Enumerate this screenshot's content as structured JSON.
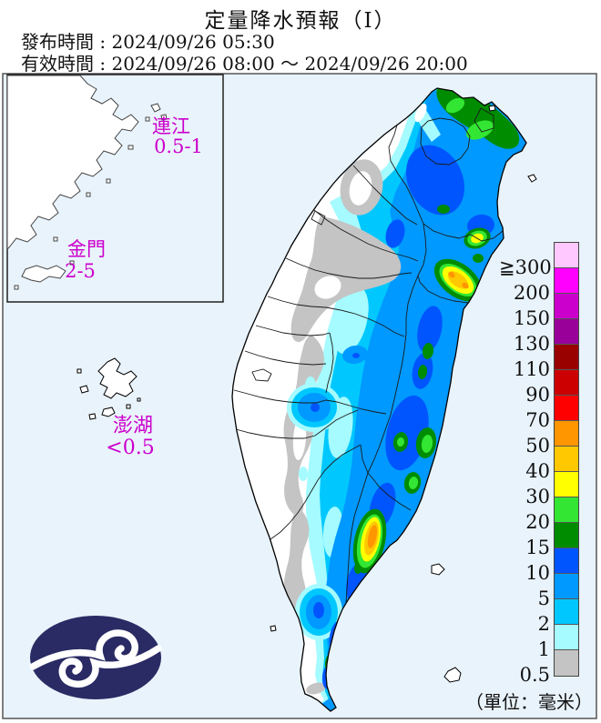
{
  "header": {
    "title": "定量降水預報（Ⅰ）",
    "issued_label": "發布時間 :",
    "issued_time": "2024/09/26 05:30",
    "valid_label": "有效時間 :",
    "valid_time": "2024/09/26 08:00 ～ 2024/09/26 20:00"
  },
  "map": {
    "sea_color": "#E9F3FB",
    "land_color": "#FFFFFF",
    "label_color": "#CC00CC",
    "labels": {
      "lienchiang_name": "連江",
      "lienchiang_value": "0.5-1",
      "kinmen_name": "金門",
      "kinmen_value": "2-5",
      "penghu_name": "澎湖",
      "penghu_value": "<0.5"
    }
  },
  "palette": {
    "p300": "#FFC8FF",
    "p200": "#FF00FF",
    "p150": "#CC00CC",
    "p130": "#990099",
    "p110": "#990000",
    "p90": "#CC0000",
    "p70": "#FF0000",
    "p50": "#FF9600",
    "p40": "#FFC800",
    "p30": "#FFFF00",
    "p20": "#33E633",
    "p15": "#008C00",
    "p10": "#0055FF",
    "p5": "#0099FF",
    "p2": "#00C8FF",
    "p1": "#A5FBFF",
    "p05": "#C4C4C4"
  },
  "legend": {
    "unit_label": "（單位：毫米）",
    "entries": [
      {
        "label": "≧300",
        "key": "p300"
      },
      {
        "label": "200",
        "key": "p200"
      },
      {
        "label": "150",
        "key": "p150"
      },
      {
        "label": "130",
        "key": "p130"
      },
      {
        "label": "110",
        "key": "p110"
      },
      {
        "label": "90",
        "key": "p90"
      },
      {
        "label": "70",
        "key": "p70"
      },
      {
        "label": "50",
        "key": "p50"
      },
      {
        "label": "40",
        "key": "p40"
      },
      {
        "label": "30",
        "key": "p30"
      },
      {
        "label": "20",
        "key": "p20"
      },
      {
        "label": "15",
        "key": "p15"
      },
      {
        "label": "10",
        "key": "p10"
      },
      {
        "label": "5",
        "key": "p5"
      },
      {
        "label": "2",
        "key": "p2"
      },
      {
        "label": "1",
        "key": "p1"
      },
      {
        "label": "0.5",
        "key": "p05"
      }
    ]
  },
  "logo": {
    "bg": "#2A2A64",
    "fg": "#FFFFFF"
  }
}
